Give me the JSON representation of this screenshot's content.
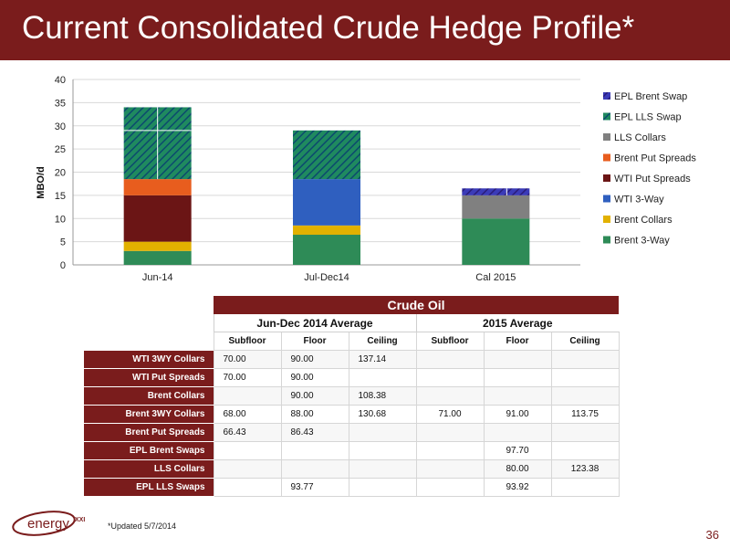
{
  "header": {
    "title": "Current Consolidated Crude Hedge Profile*"
  },
  "colors": {
    "brand": "#7a1c1c",
    "Brent 3-Way": "#2e8b57",
    "Brent Collars": "#e2b100",
    "WTI 3-Way": "#2f5fbf",
    "WTI Put Spreads": "#6b1515",
    "Brent Put Spreads": "#e85d1e",
    "LLS Collars": "#808080",
    "EPL LLS Swap": "#24926a",
    "EPL Brent Swap": "#3b3bb8"
  },
  "chart_data": {
    "type": "bar",
    "stacked": true,
    "ylabel": "MBO/d",
    "ylim": [
      0,
      40
    ],
    "yticks": [
      0,
      5,
      10,
      15,
      20,
      25,
      30,
      35,
      40
    ],
    "grid": true,
    "legend_position": "right",
    "categories": [
      "Jun-14",
      "Jul-Dec14",
      "Cal 2015"
    ],
    "series": [
      {
        "name": "Brent 3-Way",
        "values": [
          3,
          6.5,
          10
        ]
      },
      {
        "name": "Brent Collars",
        "values": [
          2,
          2,
          0
        ]
      },
      {
        "name": "WTI 3-Way",
        "values": [
          0,
          10,
          0
        ]
      },
      {
        "name": "WTI Put Spreads",
        "values": [
          10,
          0,
          0
        ]
      },
      {
        "name": "Brent Put Spreads",
        "values": [
          3.5,
          0,
          0
        ]
      },
      {
        "name": "LLS Collars",
        "values": [
          0,
          0,
          5
        ]
      },
      {
        "name": "EPL LLS Swap",
        "values": [
          15.5,
          10.5,
          0
        ]
      },
      {
        "name": "EPL Brent Swap",
        "values": [
          0,
          0,
          1.5
        ]
      }
    ],
    "legend_order": [
      "EPL Brent Swap",
      "EPL LLS Swap",
      "LLS Collars",
      "Brent Put Spreads",
      "WTI Put Spreads",
      "WTI 3-Way",
      "Brent Collars",
      "Brent 3-Way"
    ]
  },
  "table": {
    "section_title": "Crude Oil",
    "groups": [
      "Jun-Dec 2014 Average",
      "2015 Average"
    ],
    "subheaders": [
      "Subfloor",
      "Floor",
      "Ceiling",
      "Subfloor",
      "Floor",
      "Ceiling"
    ],
    "rows": [
      {
        "label": "WTI 3WY Collars",
        "values": [
          "70.00",
          "90.00",
          "137.14",
          "",
          "",
          ""
        ]
      },
      {
        "label": "WTI Put Spreads",
        "values": [
          "70.00",
          "90.00",
          "",
          "",
          "",
          ""
        ]
      },
      {
        "label": "Brent Collars",
        "values": [
          "",
          "90.00",
          "108.38",
          "",
          "",
          ""
        ]
      },
      {
        "label": "Brent 3WY Collars",
        "values": [
          "68.00",
          "88.00",
          "130.68",
          "71.00",
          "91.00",
          "113.75"
        ]
      },
      {
        "label": "Brent Put Spreads",
        "values": [
          "66.43",
          "86.43",
          "",
          "",
          "",
          ""
        ]
      },
      {
        "label": "EPL Brent Swaps",
        "values": [
          "",
          "",
          "",
          "",
          "97.70",
          ""
        ]
      },
      {
        "label": "LLS Collars",
        "values": [
          "",
          "",
          "",
          "",
          "80.00",
          "123.38"
        ]
      },
      {
        "label": "EPL LLS Swaps",
        "values": [
          "",
          "93.77",
          "",
          "",
          "93.92",
          ""
        ]
      }
    ]
  },
  "footer": {
    "logo_text": "energy XXI",
    "footnote": "*Updated 5/7/2014",
    "page": "36"
  }
}
